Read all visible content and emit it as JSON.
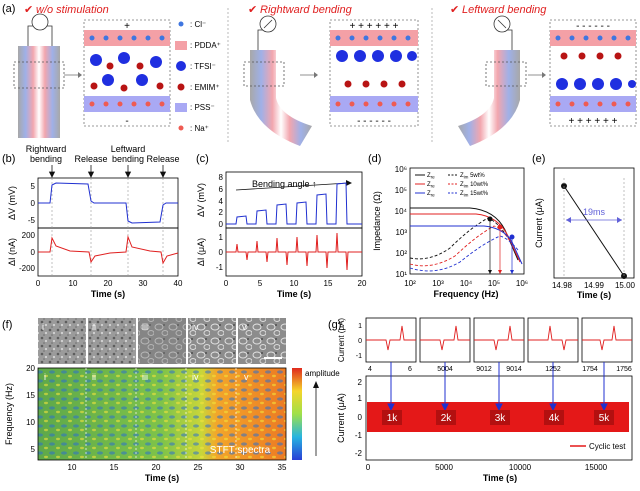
{
  "panel_a": {
    "label": "(a)",
    "titles": [
      "w/o stimulation",
      "Rightward bending",
      "Leftward bending"
    ],
    "legend": [
      {
        "label": ": Cl⁻",
        "color": "#3f76e0",
        "kind": "small-dot"
      },
      {
        "label": ": PDDA⁺",
        "color": "#f4a0a6",
        "kind": "band"
      },
      {
        "label": ": TFSI⁻",
        "color": "#1f2fe0",
        "kind": "big-dot"
      },
      {
        "label": ": EMIM⁺",
        "color": "#b81414",
        "kind": "dot"
      },
      {
        "label": ": PSS⁻",
        "color": "#a9a9f4",
        "kind": "band"
      },
      {
        "label": ": Na⁺",
        "color": "#ef5b52",
        "kind": "small-dot"
      }
    ]
  },
  "panel_b": {
    "label": "(b)",
    "annotations": [
      "Rightward",
      "bending",
      "Release",
      "Leftward",
      "bending",
      "Release"
    ],
    "top_ylabel": "ΔV (mV)",
    "bottom_ylabel": "ΔI (nA)",
    "xlabel": "Time (s)",
    "top_yticks": [
      "5",
      "0",
      "-5"
    ],
    "bottom_yticks": [
      "200",
      "0",
      "-200"
    ],
    "xticks": [
      "0",
      "10",
      "20",
      "30",
      "40"
    ]
  },
  "panel_c": {
    "label": "(c)",
    "annotation": "Bending angle ↑",
    "top_ylabel": "ΔV (mV)",
    "bottom_ylabel": "ΔI (μA)",
    "xlabel": "Time (s)",
    "top_yticks": [
      "8",
      "6",
      "4",
      "2",
      "0"
    ],
    "bottom_yticks": [
      "1",
      "0",
      "-1"
    ],
    "xticks": [
      "0",
      "5",
      "10",
      "15",
      "20"
    ]
  },
  "panel_d": {
    "label": "(d)",
    "ylabel": "Impedance (Ω)",
    "xlabel": "Frequency (Hz)",
    "yticks": [
      "10⁶",
      "10⁵",
      "10⁴",
      "10³",
      "10²",
      "10¹"
    ],
    "xticks": [
      "10²",
      "10³",
      "10⁴",
      "10⁵",
      "10⁶"
    ],
    "legend": [
      {
        "label": "Z",
        "sub": "re",
        "suffix": "",
        "style": "solid",
        "color": "#111111"
      },
      {
        "label": "Z",
        "sub": "im",
        "suffix": " 5wt%",
        "style": "dashed",
        "color": "#111111"
      },
      {
        "label": "Z",
        "sub": "re",
        "suffix": "",
        "style": "solid",
        "color": "#e02020"
      },
      {
        "label": "Z",
        "sub": "im",
        "suffix": " 10wt%",
        "style": "dashed",
        "color": "#e02020"
      },
      {
        "label": "Z",
        "sub": "re",
        "suffix": "",
        "style": "solid",
        "color": "#2030d0"
      },
      {
        "label": "Z",
        "sub": "im",
        "suffix": " 15wt%",
        "style": "dashed",
        "color": "#2030d0"
      }
    ]
  },
  "panel_e": {
    "label": "(e)",
    "ylabel": "Current (μA)",
    "xlabel": "Time (s)",
    "annotation": "19ms",
    "xticks": [
      "14.98",
      "14.99",
      "15.00"
    ]
  },
  "panel_f": {
    "label": "(f)",
    "image_labels": [
      "i",
      "ii",
      "iii",
      "iv",
      "v"
    ],
    "ylabel": "Frequency (Hz)",
    "xlabel": "Time (s)",
    "yticks": [
      "20",
      "15",
      "10",
      "5"
    ],
    "xticks": [
      "10",
      "15",
      "20",
      "25",
      "30",
      "35"
    ],
    "spectra_label": "STFT spectra",
    "colorbar_label": "amplitude"
  },
  "panel_g": {
    "label": "(g)",
    "inset_ylabel": "Current (μA)",
    "inset_yticks": [
      "1",
      "0",
      "-1"
    ],
    "inset_xticks": [
      "4",
      "6",
      "5004",
      "9012",
      "9014",
      "1252",
      "1754",
      "1756"
    ],
    "ylabel": "Current (μA)",
    "xlabel": "Time (s)",
    "yticks": [
      "2",
      "1",
      "0",
      "-1",
      "-2"
    ],
    "xticks": [
      "0",
      "5000",
      "10000",
      "15000"
    ],
    "cycle_labels": [
      "1k",
      "2k",
      "3k",
      "4k",
      "5k"
    ],
    "legend_label": "Cyclic test"
  }
}
